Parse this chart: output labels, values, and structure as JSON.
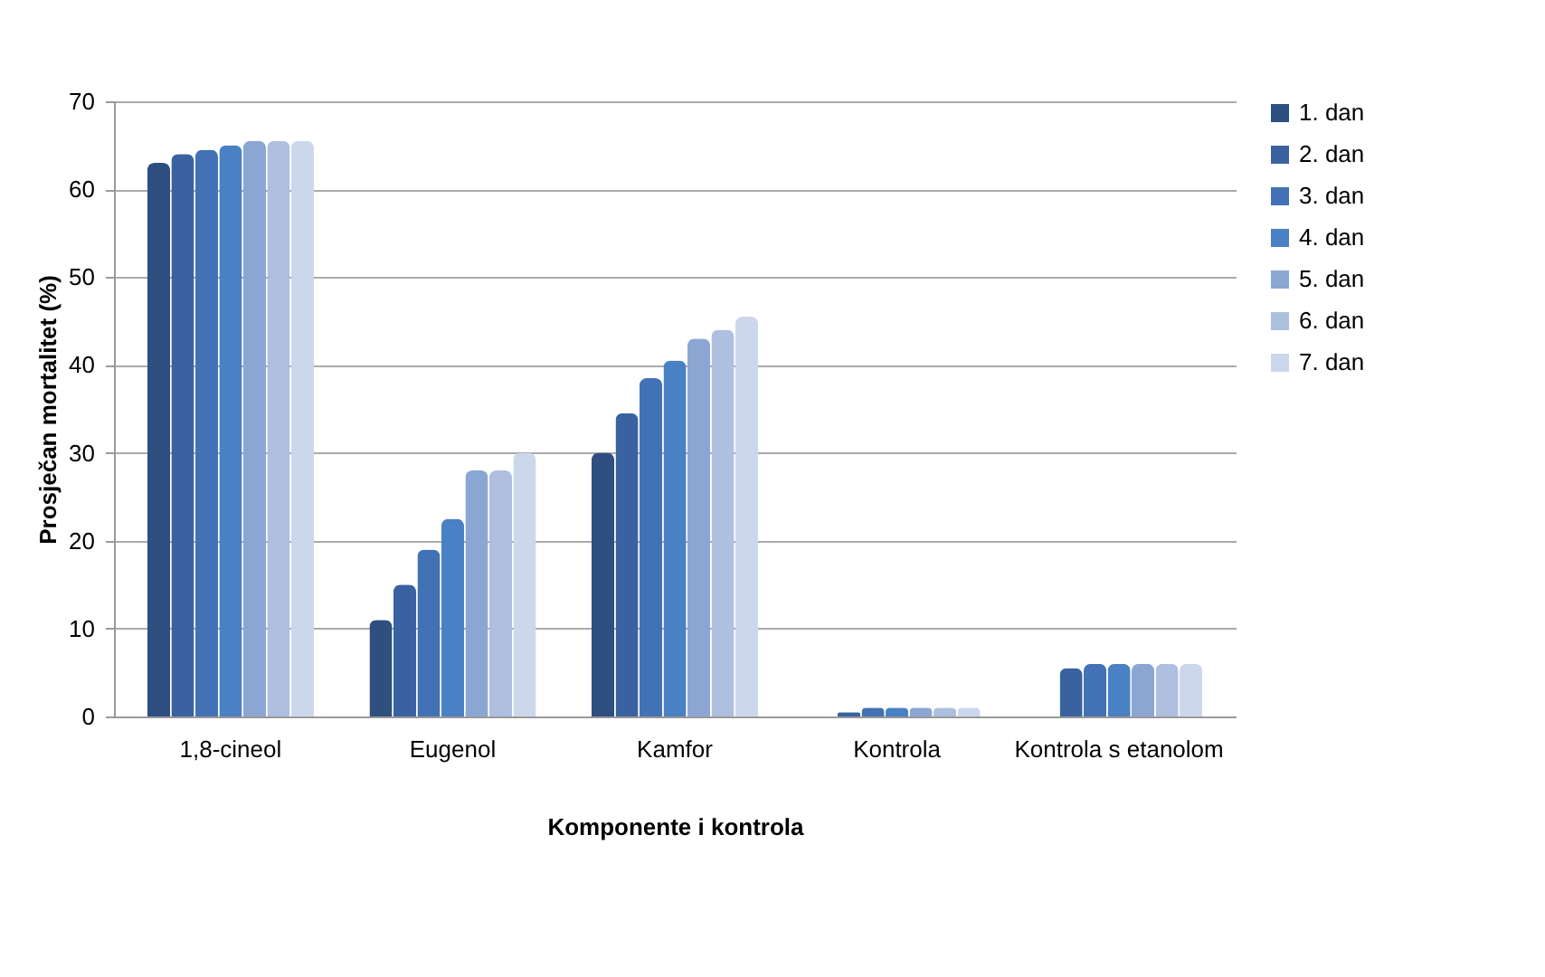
{
  "chart_data": {
    "type": "bar",
    "xlabel": "Komponente i kontrola",
    "ylabel": "Prosječan mortalitet (%)",
    "categories": [
      "1,8-cineol",
      "Eugenol",
      "Kamfor",
      "Kontrola",
      "Kontrola s etanolom"
    ],
    "series": [
      {
        "name": "1. dan",
        "color": "#2e4f7f",
        "values": [
          63,
          11,
          30,
          0,
          0
        ]
      },
      {
        "name": "2. dan",
        "color": "#3a62a0",
        "values": [
          64,
          15,
          34.5,
          0.5,
          5.5
        ]
      },
      {
        "name": "3. dan",
        "color": "#4272b5",
        "values": [
          64.5,
          19,
          38.5,
          1,
          6
        ]
      },
      {
        "name": "4. dan",
        "color": "#4a80c4",
        "values": [
          65,
          22.5,
          40.5,
          1,
          6
        ]
      },
      {
        "name": "5. dan",
        "color": "#8ba6d3",
        "values": [
          65.5,
          28,
          43,
          1,
          6
        ]
      },
      {
        "name": "6. dan",
        "color": "#aebfe0",
        "values": [
          65.5,
          28,
          44,
          1,
          6
        ]
      },
      {
        "name": "7. dan",
        "color": "#cdd7ec",
        "values": [
          65.5,
          30,
          45.5,
          1,
          6
        ]
      }
    ],
    "ylim": [
      0,
      70
    ],
    "yticks": [
      0,
      10,
      20,
      30,
      40,
      50,
      60,
      70
    ],
    "grid": "y",
    "legend": "right"
  }
}
